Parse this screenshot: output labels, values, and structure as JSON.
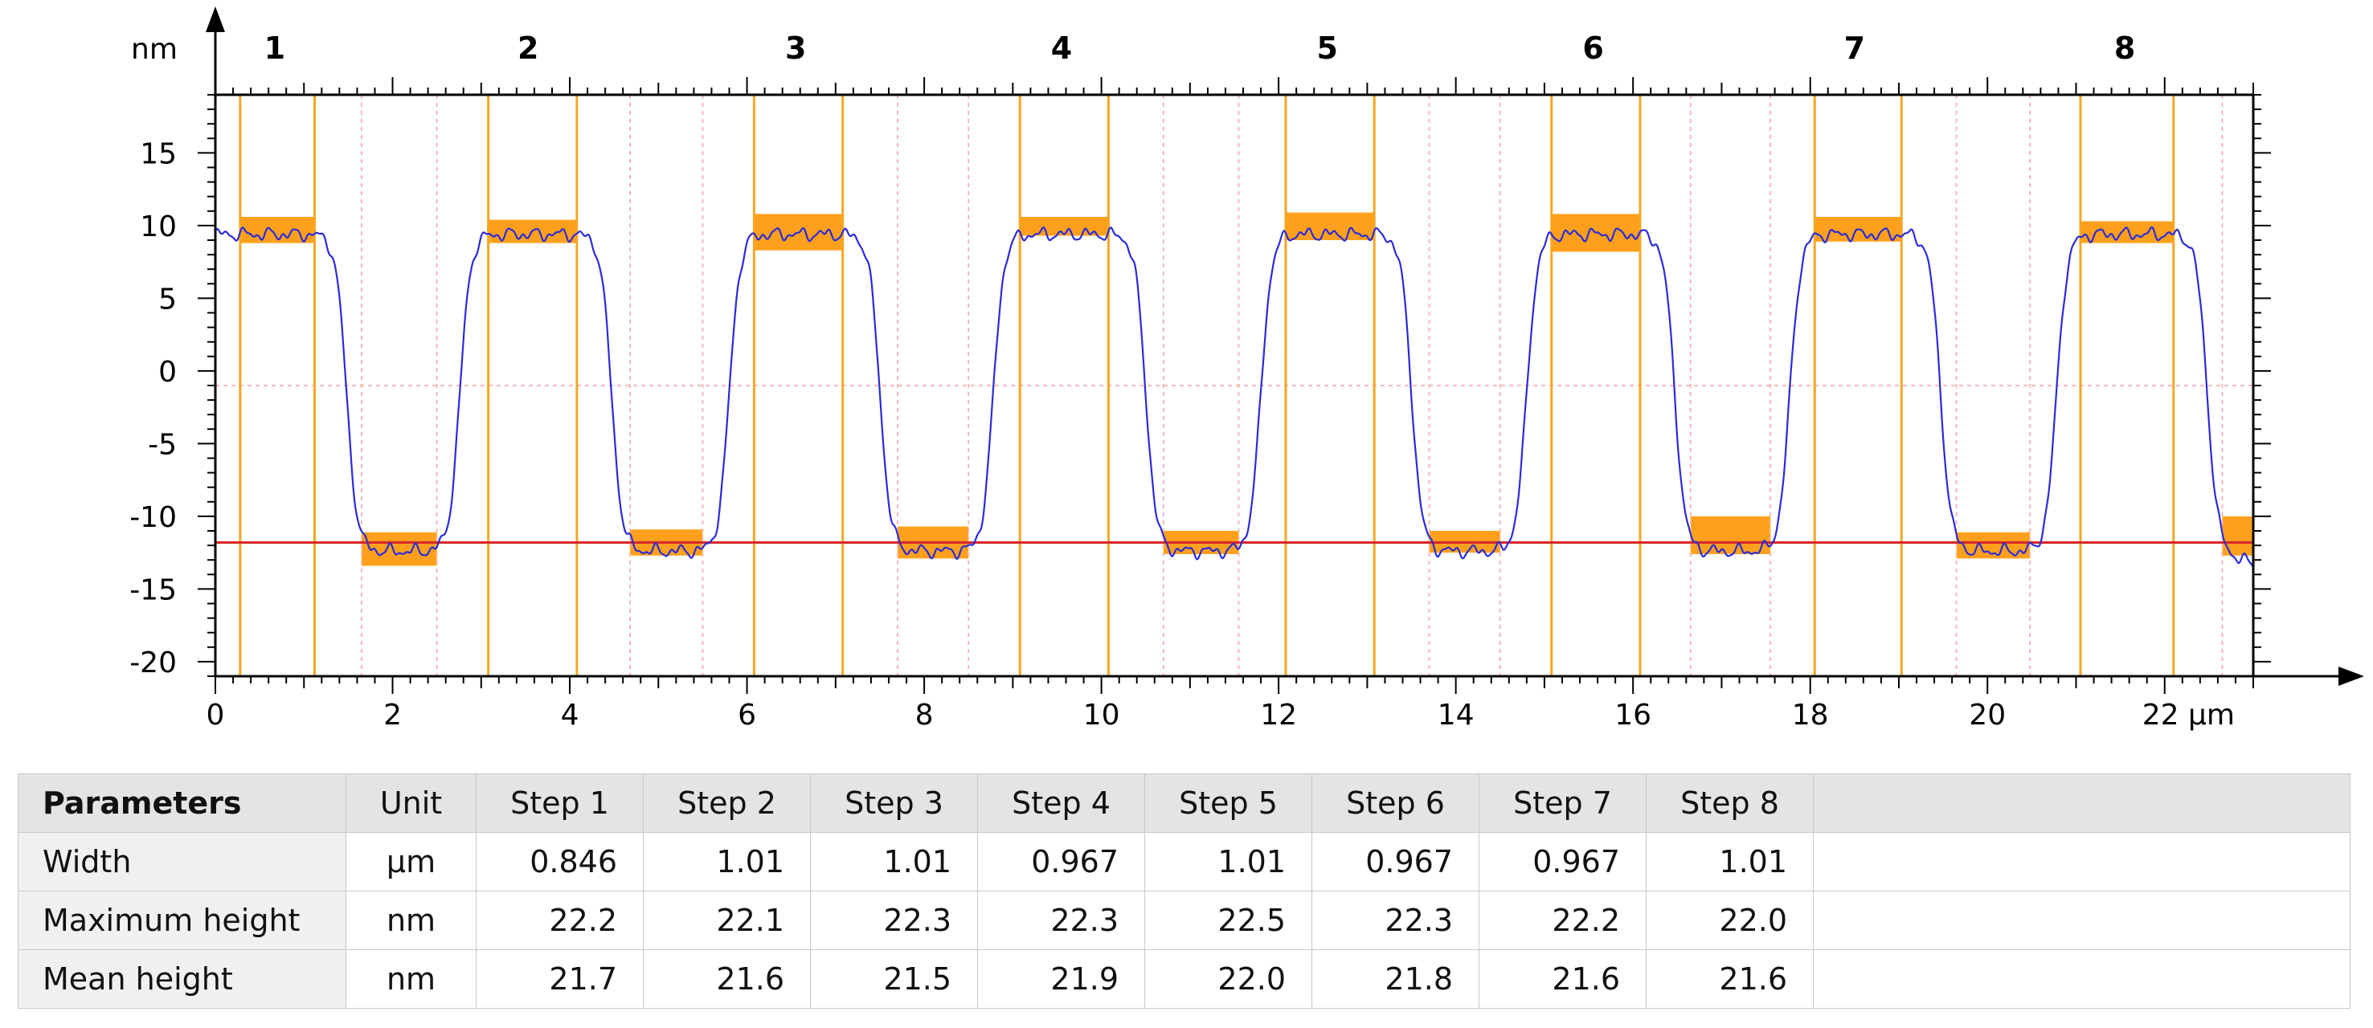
{
  "chart_data": {
    "type": "line",
    "ylabel": "nm",
    "xunit": "µm",
    "xlim": [
      0,
      23
    ],
    "ylim": [
      -21,
      19
    ],
    "xticks": [
      0,
      2,
      4,
      6,
      8,
      10,
      12,
      14,
      16,
      18,
      20,
      22
    ],
    "xtick_labels": [
      "0",
      "2",
      "4",
      "6",
      "8",
      "10",
      "12",
      "14",
      "16",
      "18",
      "20",
      "22 µm"
    ],
    "yticks": [
      15,
      10,
      5,
      0,
      -5,
      -10,
      -15,
      -20
    ],
    "ytick_labels": [
      "15",
      "10",
      "5",
      "0",
      "-5",
      "-10",
      "-15",
      "-20"
    ],
    "reference_line_y": -11.8,
    "zero_line_y": -1,
    "step_numbers": [
      "1",
      "2",
      "3",
      "4",
      "5",
      "6",
      "7",
      "8"
    ],
    "step_label_x": [
      0.67,
      3.53,
      6.55,
      9.55,
      12.55,
      15.55,
      18.5,
      21.55
    ],
    "step_boundaries": [
      [
        0.28,
        1.12
      ],
      [
        3.08,
        4.08
      ],
      [
        6.08,
        7.08
      ],
      [
        9.08,
        10.08
      ],
      [
        12.08,
        13.08
      ],
      [
        15.08,
        16.08
      ],
      [
        18.05,
        19.03
      ],
      [
        21.05,
        22.1
      ]
    ],
    "upper_bands": [
      {
        "x": [
          0.28,
          1.12
        ],
        "y": [
          8.8,
          10.6
        ]
      },
      {
        "x": [
          3.08,
          4.08
        ],
        "y": [
          8.8,
          10.4
        ]
      },
      {
        "x": [
          6.08,
          7.08
        ],
        "y": [
          8.3,
          10.8
        ]
      },
      {
        "x": [
          9.08,
          10.08
        ],
        "y": [
          9.3,
          10.6
        ]
      },
      {
        "x": [
          12.08,
          13.08
        ],
        "y": [
          9.0,
          10.9
        ]
      },
      {
        "x": [
          15.08,
          16.08
        ],
        "y": [
          8.2,
          10.8
        ]
      },
      {
        "x": [
          18.05,
          19.03
        ],
        "y": [
          8.9,
          10.6
        ]
      },
      {
        "x": [
          21.05,
          22.1
        ],
        "y": [
          8.8,
          10.3
        ]
      }
    ],
    "lower_bands": [
      {
        "x": [
          1.65,
          2.5
        ],
        "y": [
          -13.4,
          -11.1
        ]
      },
      {
        "x": [
          4.68,
          5.5
        ],
        "y": [
          -12.7,
          -10.9
        ]
      },
      {
        "x": [
          7.7,
          8.5
        ],
        "y": [
          -12.9,
          -10.7
        ]
      },
      {
        "x": [
          10.7,
          11.55
        ],
        "y": [
          -12.6,
          -11.0
        ]
      },
      {
        "x": [
          13.7,
          14.5
        ],
        "y": [
          -12.5,
          -11.0
        ]
      },
      {
        "x": [
          16.65,
          17.55
        ],
        "y": [
          -12.6,
          -10.0
        ]
      },
      {
        "x": [
          19.65,
          20.48
        ],
        "y": [
          -12.9,
          -11.1
        ]
      },
      {
        "x": [
          22.65,
          23.0
        ],
        "y": [
          -12.7,
          -10.0
        ]
      }
    ],
    "lower_guides": [
      [
        1.65,
        2.5
      ],
      [
        4.68,
        5.5
      ],
      [
        7.7,
        8.5
      ],
      [
        10.7,
        11.55
      ],
      [
        13.7,
        14.5
      ],
      [
        16.65,
        17.55
      ],
      [
        19.65,
        20.48
      ],
      [
        22.65,
        23.0
      ]
    ],
    "profile": {
      "high_level": 9.9,
      "low_level": -11.9,
      "start_level": 9.4,
      "end_level": -12.8,
      "falls": [
        1.48,
        4.47,
        7.5,
        10.5,
        13.5,
        16.47,
        19.47,
        22.48
      ],
      "rises": [
        2.76,
        5.8,
        8.78,
        11.8,
        14.8,
        17.77,
        20.78
      ]
    },
    "colors": {
      "profile": "#2b2bd9",
      "band": "#ffa01c",
      "boundary": "#f5a623",
      "guide": "#f5b8b8",
      "reference": "#d62828",
      "axis": "#000000"
    }
  },
  "table": {
    "header": [
      "Parameters",
      "Unit",
      "Step 1",
      "Step 2",
      "Step 3",
      "Step 4",
      "Step 5",
      "Step 6",
      "Step 7",
      "Step 8"
    ],
    "rows": [
      {
        "label": "Width",
        "unit": "µm",
        "values": [
          "0.846",
          "1.01",
          "1.01",
          "0.967",
          "1.01",
          "0.967",
          "0.967",
          "1.01"
        ]
      },
      {
        "label": "Maximum height",
        "unit": "nm",
        "values": [
          "22.2",
          "22.1",
          "22.3",
          "22.3",
          "22.5",
          "22.3",
          "22.2",
          "22.0"
        ]
      },
      {
        "label": "Mean height",
        "unit": "nm",
        "values": [
          "21.7",
          "21.6",
          "21.5",
          "21.9",
          "22.0",
          "21.8",
          "21.6",
          "21.6"
        ]
      }
    ]
  }
}
